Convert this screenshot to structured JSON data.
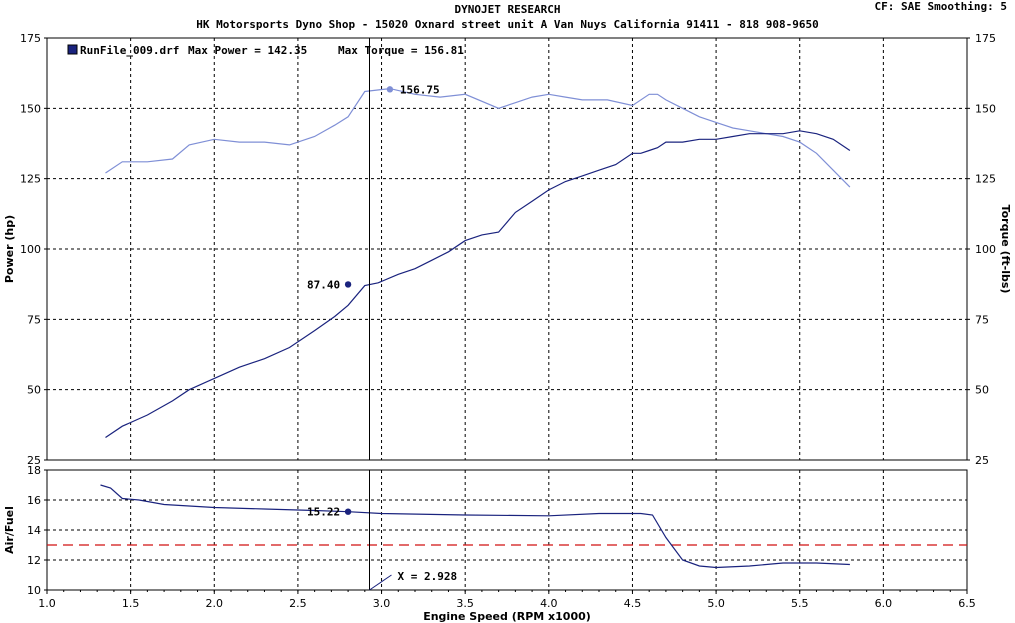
{
  "header": {
    "title": "DYNOJET RESEARCH",
    "subtitle": "HK Motorsports Dyno Shop - 15020 Oxnard street unit A Van Nuys California 91411 - 818 908-9650",
    "cf_label": "CF: SAE",
    "smoothing_label": "Smoothing: 5"
  },
  "legend": {
    "file_label": "RunFile_009.drf",
    "max_power_label": "Max Power = 142.35",
    "max_torque_label": "Max Torque = 156.81"
  },
  "colors": {
    "power": "#1a237e",
    "torque": "#7f8fd6",
    "afr": "#1a237e",
    "target": "#d01010",
    "cursor": "#000000"
  },
  "chart_data": [
    {
      "type": "line",
      "name": "power-torque",
      "xlabel": "Engine Speed (RPM x1000)",
      "ylabel": "Power (hp)",
      "y2label": "Torque (ft-lbs)",
      "xlim": [
        1.0,
        6.5
      ],
      "ylim": [
        25,
        175
      ],
      "y2lim": [
        25,
        175
      ],
      "xticks": [
        "1.0",
        "1.5",
        "2.0",
        "2.5",
        "3.0",
        "3.5",
        "4.0",
        "4.5",
        "5.0",
        "5.5",
        "6.0",
        "6.5"
      ],
      "yticks": [
        "25",
        "50",
        "75",
        "100",
        "125",
        "150",
        "175"
      ],
      "grid": true,
      "series": [
        {
          "role": "power",
          "x": [
            1.35,
            1.45,
            1.6,
            1.75,
            1.85,
            2.0,
            2.15,
            2.3,
            2.45,
            2.6,
            2.72,
            2.8,
            2.9,
            2.98,
            3.1,
            3.2,
            3.3,
            3.4,
            3.5,
            3.6,
            3.7,
            3.8,
            3.9,
            4.0,
            4.1,
            4.2,
            4.3,
            4.4,
            4.5,
            4.55,
            4.6,
            4.65,
            4.7,
            4.8,
            4.9,
            5.0,
            5.1,
            5.2,
            5.3,
            5.4,
            5.5,
            5.6,
            5.7,
            5.8
          ],
          "y": [
            33,
            37,
            41,
            46,
            50,
            54,
            58,
            61,
            65,
            71,
            76,
            80,
            87,
            88,
            91,
            93,
            96,
            99,
            103,
            105,
            106,
            113,
            117,
            121,
            124,
            126,
            128,
            130,
            134,
            134,
            135,
            136,
            138,
            138,
            139,
            139,
            140,
            141,
            141,
            141,
            142,
            141,
            139,
            135
          ]
        },
        {
          "role": "torque",
          "x": [
            1.35,
            1.45,
            1.6,
            1.75,
            1.85,
            2.0,
            2.15,
            2.3,
            2.45,
            2.6,
            2.72,
            2.8,
            2.9,
            3.05,
            3.2,
            3.35,
            3.5,
            3.7,
            3.8,
            3.9,
            4.0,
            4.1,
            4.2,
            4.35,
            4.5,
            4.6,
            4.65,
            4.7,
            4.8,
            4.9,
            5.0,
            5.1,
            5.2,
            5.3,
            5.4,
            5.5,
            5.6,
            5.7,
            5.8
          ],
          "y": [
            127,
            131,
            131,
            132,
            137,
            139,
            138,
            138,
            137,
            140,
            144,
            147,
            156,
            157,
            155,
            154,
            155,
            150,
            152,
            154,
            155,
            154,
            153,
            153,
            151,
            155,
            155,
            153,
            150,
            147,
            145,
            143,
            142,
            141,
            140,
            138,
            134,
            128,
            122
          ]
        }
      ],
      "annotations": [
        {
          "label": "87.40",
          "x": 2.8,
          "y": 87.4,
          "series": "power"
        },
        {
          "label": "156.75",
          "x": 3.05,
          "y": 156.75,
          "series": "torque"
        }
      ]
    },
    {
      "type": "line",
      "name": "air-fuel",
      "ylabel": "Air/Fuel",
      "xlim": [
        1.0,
        6.5
      ],
      "ylim": [
        10,
        18
      ],
      "yticks": [
        "10",
        "12",
        "14",
        "16",
        "18"
      ],
      "grid": true,
      "target_afr": 13.0,
      "series": [
        {
          "role": "afr",
          "x": [
            1.32,
            1.38,
            1.45,
            1.55,
            1.7,
            1.85,
            2.0,
            2.3,
            2.6,
            2.8,
            3.0,
            3.5,
            4.0,
            4.3,
            4.55,
            4.62,
            4.7,
            4.8,
            4.9,
            5.0,
            5.2,
            5.4,
            5.6,
            5.8
          ],
          "y": [
            17.0,
            16.8,
            16.1,
            16.0,
            15.7,
            15.6,
            15.5,
            15.4,
            15.3,
            15.22,
            15.1,
            15.0,
            14.95,
            15.1,
            15.1,
            15.0,
            13.5,
            12.0,
            11.6,
            11.5,
            11.6,
            11.8,
            11.8,
            11.7
          ]
        }
      ],
      "annotations": [
        {
          "label": "15.22",
          "x": 2.8,
          "y": 15.22,
          "series": "afr"
        },
        {
          "label": "X = 2.928",
          "x": 2.928
        }
      ]
    }
  ],
  "cursor_x": 2.928
}
